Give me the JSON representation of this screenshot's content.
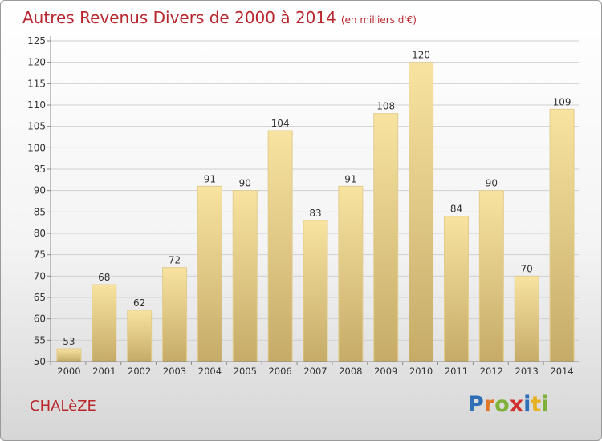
{
  "title": {
    "main": "Autres Revenus Divers de 2000 à 2014",
    "unit": "(en milliers d'€)"
  },
  "town": "CHALèZE",
  "logo": {
    "text": "Proxiti",
    "letters": [
      {
        "ch": "P",
        "color": "#2f6fb5"
      },
      {
        "ch": "r",
        "color": "#e0762a"
      },
      {
        "ch": "o",
        "color": "#7fb03a"
      },
      {
        "ch": "x",
        "color": "#d2302e"
      },
      {
        "ch": "i",
        "color": "#2f6fb5"
      },
      {
        "ch": "t",
        "color": "#e6b224"
      },
      {
        "ch": "i",
        "color": "#7fb03a"
      }
    ]
  },
  "colors": {
    "bar_light": "#f8e3a1",
    "bar_dark": "#c6ab68",
    "bar_stroke": "#e2cd8e",
    "grid": "#d0d0d0",
    "axis_text": "#333333",
    "title": "#b8272e"
  },
  "chart_data": {
    "type": "bar",
    "title": "Autres Revenus Divers de 2000 à 2014",
    "xlabel": "",
    "ylabel": "",
    "ylim": [
      50,
      125
    ],
    "ytick_step": 5,
    "grid": true,
    "categories": [
      "2000",
      "2001",
      "2002",
      "2003",
      "2004",
      "2005",
      "2006",
      "2007",
      "2008",
      "2009",
      "2010",
      "2011",
      "2012",
      "2013",
      "2014"
    ],
    "values": [
      53,
      68,
      62,
      72,
      91,
      90,
      104,
      83,
      91,
      108,
      120,
      84,
      90,
      70,
      109
    ]
  }
}
